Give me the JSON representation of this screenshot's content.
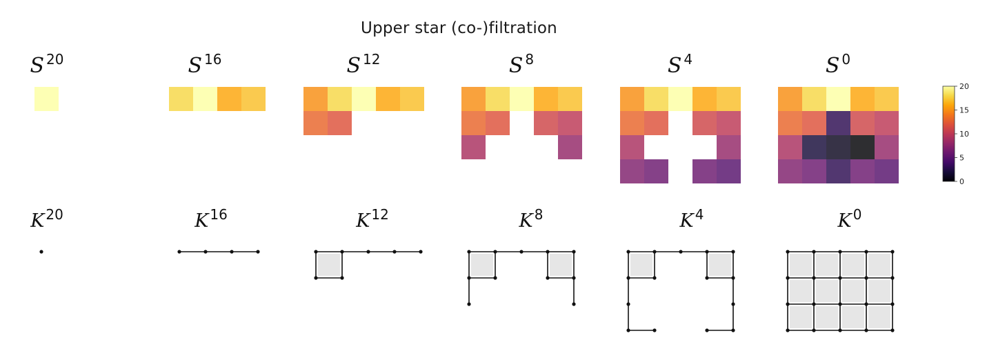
{
  "title": "Upper star (co-)filtration",
  "thresholds": [
    20,
    16,
    12,
    8,
    4,
    0
  ],
  "s_symbol": "S",
  "k_symbol": "K",
  "s_labels": [
    {
      "base": "S",
      "sup": "20"
    },
    {
      "base": "S",
      "sup": "16"
    },
    {
      "base": "S",
      "sup": "12"
    },
    {
      "base": "S",
      "sup": "8"
    },
    {
      "base": "S",
      "sup": "4"
    },
    {
      "base": "S",
      "sup": "0"
    }
  ],
  "k_labels": [
    {
      "base": "K",
      "sup": "20"
    },
    {
      "base": "K",
      "sup": "16"
    },
    {
      "base": "K",
      "sup": "12"
    },
    {
      "base": "K",
      "sup": "8"
    },
    {
      "base": "K",
      "sup": "4"
    },
    {
      "base": "K",
      "sup": "0"
    }
  ],
  "grid_values": [
    [
      15,
      18,
      20,
      16,
      17
    ],
    [
      13,
      12,
      3,
      11,
      10
    ],
    [
      9,
      2,
      1,
      0,
      8
    ],
    [
      7,
      6,
      3,
      6,
      5
    ]
  ],
  "first_panel_column": 2,
  "colormap": "inferno",
  "colorbar": {
    "min": 0,
    "max": 20,
    "ticks": [
      "0",
      "5",
      "10",
      "15",
      "20"
    ]
  },
  "complex_fill": "#e6e6e6"
}
